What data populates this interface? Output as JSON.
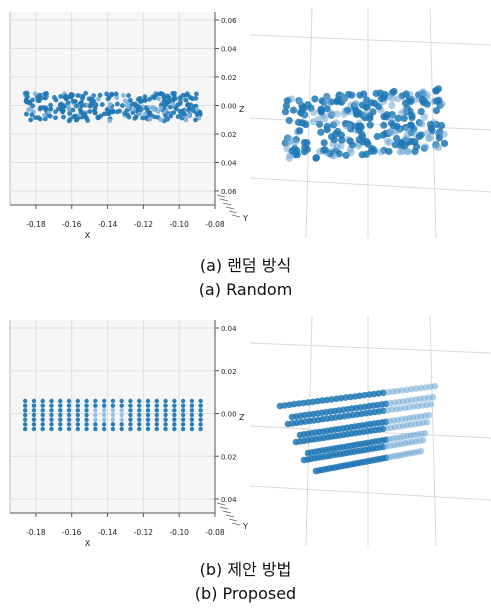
{
  "captions": {
    "a_kr": "(a) 랜덤 방식",
    "a_en": "(a) Random",
    "b_kr": "(b) 제안 방법",
    "b_en": "(b) Proposed"
  },
  "chart_data": [
    {
      "type": "scatter",
      "view": "front",
      "title": "",
      "xlabel": "X",
      "zlabel": "Z",
      "ylabel": "Y",
      "x_ticks": [
        "-0.18",
        "-0.16",
        "-0.14",
        "-0.12",
        "-0.10",
        "-0.08"
      ],
      "z_ticks": [
        "0.06",
        "0.04",
        "0.02",
        "0.00",
        "0.02",
        "0.04",
        "0.06"
      ],
      "xlim": [
        -0.19,
        -0.08
      ],
      "zlim": [
        -0.06,
        0.06
      ],
      "grid": true,
      "distribution": "random",
      "x_range": [
        -0.186,
        -0.088
      ],
      "z_range": [
        -0.015,
        0.012
      ],
      "color": "#1f77b4"
    },
    {
      "type": "scatter",
      "view": "perspective",
      "distribution": "random",
      "grid": true,
      "color": "#1f77b4"
    },
    {
      "type": "scatter",
      "view": "front",
      "title": "",
      "xlabel": "X",
      "zlabel": "Z",
      "ylabel": "Y",
      "x_ticks": [
        "-0.18",
        "-0.16",
        "-0.14",
        "-0.12",
        "-0.10",
        "-0.08"
      ],
      "z_ticks": [
        "0.04",
        "0.02",
        "0.00",
        "0.02",
        "0.04"
      ],
      "xlim": [
        -0.19,
        -0.08
      ],
      "zlim": [
        -0.06,
        0.06
      ],
      "grid": true,
      "distribution": "grid",
      "x_range": [
        -0.186,
        -0.088
      ],
      "z_range": [
        -0.015,
        0.012
      ],
      "columns": 21,
      "rows": 7,
      "color": "#1f77b4"
    },
    {
      "type": "scatter",
      "view": "perspective",
      "distribution": "grid",
      "grid": true,
      "color": "#1f77b4"
    }
  ]
}
